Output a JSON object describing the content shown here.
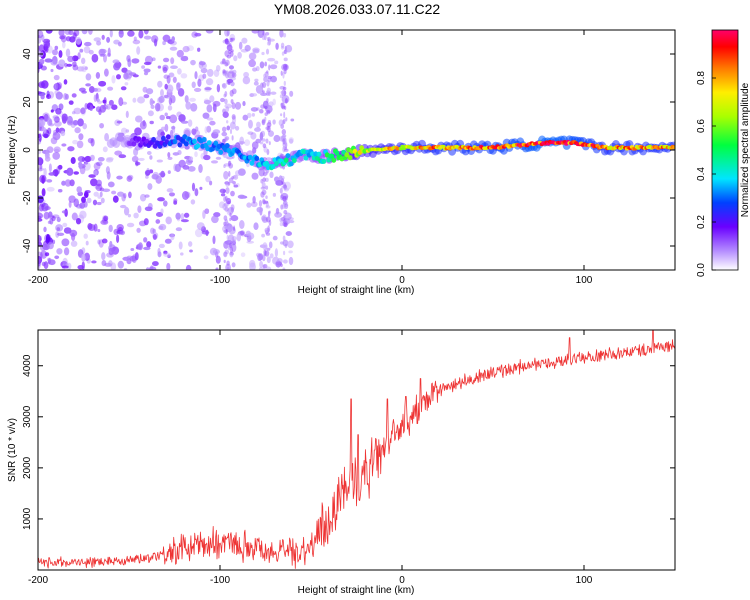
{
  "title": "YM08.2026.033.07.11.C22",
  "chart_data": [
    {
      "type": "heatmap",
      "xlabel": "Height of straight line (km)",
      "ylabel": "Frequency (Hz)",
      "xlim": [
        -200,
        150
      ],
      "ylim": [
        -50,
        50
      ],
      "xticks": [
        -200,
        -100,
        0,
        100
      ],
      "yticks": [
        -40,
        -20,
        0,
        20,
        40
      ],
      "colorbar": {
        "label": "Normalized spectral amplitude",
        "range": [
          0,
          1
        ],
        "ticks": [
          0.0,
          0.2,
          0.4,
          0.6,
          0.8
        ]
      },
      "ridge": {
        "description": "Main frequency track",
        "x": [
          -155,
          -140,
          -125,
          -110,
          -95,
          -85,
          -75,
          -65,
          -55,
          -45,
          -35,
          -25,
          -15,
          0,
          20,
          50,
          80,
          95,
          110,
          130,
          150
        ],
        "y": [
          4,
          3,
          4,
          3,
          0,
          -3,
          -6,
          -5,
          -2,
          -3,
          -2,
          -1,
          0,
          1,
          1,
          1,
          3,
          3,
          1,
          1,
          1
        ],
        "amplitude": [
          0.15,
          0.2,
          0.3,
          0.35,
          0.35,
          0.35,
          0.4,
          0.45,
          0.4,
          0.45,
          0.55,
          0.7,
          0.75,
          0.8,
          0.85,
          0.9,
          1.0,
          0.95,
          0.85,
          0.85,
          0.85
        ]
      }
    },
    {
      "type": "line",
      "xlabel": "Height of straight line (km)",
      "ylabel": "SNR (10 * v/v)",
      "xlim": [
        -200,
        150
      ],
      "ylim": [
        0,
        4700
      ],
      "xticks": [
        -200,
        -100,
        0,
        100
      ],
      "yticks": [
        1000,
        2000,
        3000,
        4000
      ],
      "color": "#ee3333",
      "series": [
        {
          "name": "SNR",
          "x": [
            -200,
            -180,
            -160,
            -150,
            -140,
            -130,
            -120,
            -110,
            -100,
            -90,
            -80,
            -70,
            -60,
            -50,
            -45,
            -40,
            -35,
            -30,
            -25,
            -20,
            -15,
            -10,
            -5,
            0,
            5,
            10,
            20,
            30,
            40,
            50,
            60,
            70,
            80,
            90,
            100,
            110,
            120,
            130,
            140,
            150
          ],
          "y": [
            150,
            150,
            170,
            200,
            250,
            330,
            400,
            500,
            550,
            500,
            450,
            350,
            350,
            450,
            700,
            1000,
            1400,
            1700,
            1700,
            1900,
            2100,
            2400,
            2600,
            2800,
            3000,
            3200,
            3500,
            3650,
            3750,
            3850,
            3950,
            4000,
            4050,
            4100,
            4150,
            4200,
            4250,
            4300,
            4350,
            4400
          ],
          "spikes": [
            {
              "x": -28,
              "y": 3350
            },
            {
              "x": -24,
              "y": 2650
            },
            {
              "x": -15,
              "y": 2350
            },
            {
              "x": -8,
              "y": 3350
            },
            {
              "x": 2,
              "y": 3400
            },
            {
              "x": 10,
              "y": 3750
            },
            {
              "x": 92,
              "y": 4550
            },
            {
              "x": 138,
              "y": 4700
            }
          ]
        }
      ]
    }
  ]
}
